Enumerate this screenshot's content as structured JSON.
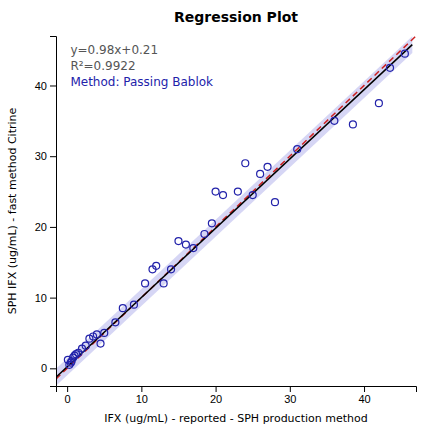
{
  "chart_data": {
    "type": "scatter",
    "title": "Regression Plot",
    "x_label": "IFX (ug/mL) - reported - SPH production method",
    "y_label": "SPH IFX (ug/mL) - fast method Citrine",
    "annotations": [
      {
        "text": "y=0.98x+0.21",
        "color": "#555555"
      },
      {
        "text": "R²=0.9922",
        "color": "#555555"
      },
      {
        "text": "Method: Passing Bablok",
        "color": "#2222AA"
      }
    ],
    "xlim": [
      -1.5,
      47
    ],
    "ylim": [
      -2.5,
      47
    ],
    "xticks": [
      0,
      10,
      20,
      30,
      40
    ],
    "yticks": [
      0,
      10,
      20,
      30,
      40
    ],
    "grid": false,
    "series": [
      {
        "type": "band",
        "color": "#BBBBEE",
        "x": [
          -1.5,
          46.5
        ],
        "values": [
          -1.26,
          45.78
        ],
        "ci": 1.2
      },
      {
        "type": "line",
        "color": "#CC2222",
        "line_style": "dashed",
        "x": [
          -1.5,
          47
        ],
        "values": [
          -1.5,
          47
        ]
      },
      {
        "type": "line",
        "color": "#000000",
        "line_style": "solid",
        "x": [
          -1.5,
          46.5
        ],
        "values": [
          -1.26,
          45.78
        ]
      },
      {
        "type": "scatter",
        "color": "#2222AA",
        "marker": "circle",
        "x": [
          0.1,
          0.3,
          0.5,
          0.6,
          0.8,
          1.0,
          1.2,
          1.5,
          2.0,
          2.5,
          3.0,
          3.5,
          4.0,
          4.5,
          5.0,
          6.5,
          7.5,
          9.0,
          10.5,
          11.5,
          12.0,
          13.0,
          14.0,
          15.0,
          16.0,
          17.0,
          18.5,
          19.5,
          20.0,
          21.0,
          23.0,
          24.0,
          25.0,
          26.0,
          27.0,
          28.0,
          31.0,
          36.0,
          38.5,
          42.0,
          43.5,
          45.5
        ],
        "values": [
          1.2,
          0.5,
          0.8,
          1.0,
          1.5,
          1.8,
          2.0,
          2.2,
          2.8,
          3.2,
          4.2,
          4.5,
          4.8,
          3.5,
          5.0,
          6.5,
          8.5,
          9.0,
          12.0,
          14.0,
          14.5,
          12.0,
          14.0,
          18.0,
          17.5,
          17.0,
          19.0,
          20.5,
          25.0,
          24.5,
          25.0,
          29.0,
          24.5,
          27.5,
          28.5,
          23.5,
          31.0,
          35.0,
          34.5,
          37.5,
          42.5,
          44.5
        ]
      }
    ]
  }
}
